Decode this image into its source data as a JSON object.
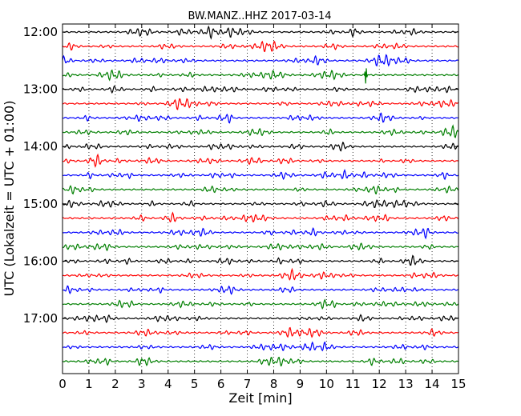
{
  "chart_data": {
    "type": "line",
    "title": "BW.MANZ..HHZ 2017-03-14",
    "xlabel": "Zeit  [min]",
    "ylabel": "UTC (Lokalzeit = UTC + 01:00)",
    "xlim": [
      0,
      15
    ],
    "x_ticks": [
      "0",
      "1",
      "2",
      "3",
      "4",
      "5",
      "6",
      "7",
      "8",
      "9",
      "10",
      "11",
      "12",
      "13",
      "14",
      "15"
    ],
    "y_tick_labels": [
      "12:00",
      "13:00",
      "14:00",
      "15:00",
      "16:00",
      "17:00"
    ],
    "grid": "vertical dotted at each minute",
    "trace_colors": [
      "#000000",
      "#ff0000",
      "#0000ff",
      "#007f00"
    ],
    "trace_interval_minutes": 15,
    "traces_start": "12:00",
    "trace_count": 24,
    "event": {
      "trace_index": 3,
      "minute": 11.5
    }
  }
}
